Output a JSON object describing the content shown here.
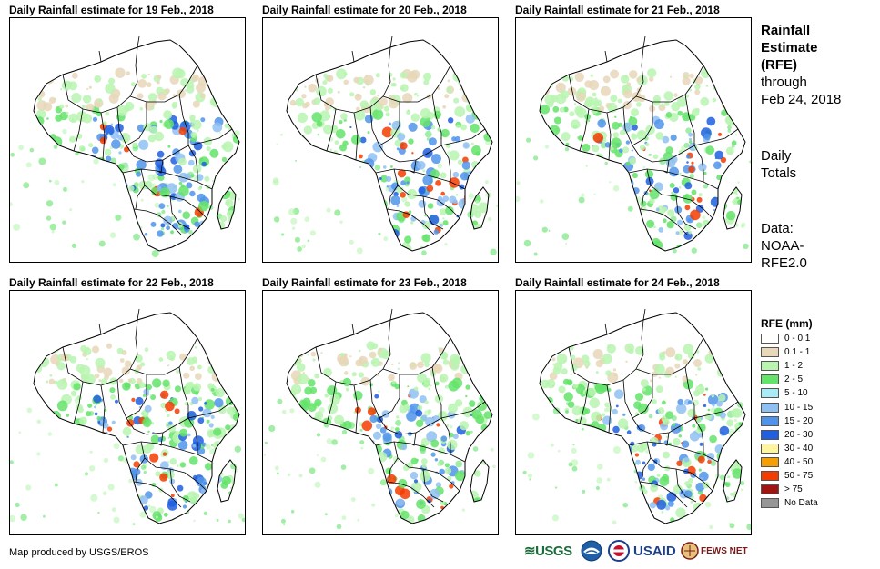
{
  "panels": [
    {
      "title": "Daily Rainfall estimate for 19 Feb., 2018"
    },
    {
      "title": "Daily Rainfall estimate for 20 Feb., 2018"
    },
    {
      "title": "Daily Rainfall estimate for 21 Feb., 2018"
    },
    {
      "title": "Daily Rainfall estimate for 22 Feb., 2018"
    },
    {
      "title": "Daily Rainfall estimate for 23 Feb., 2018"
    },
    {
      "title": "Daily Rainfall estimate for 24 Feb., 2018"
    }
  ],
  "sidebar": {
    "title_line1": "Rainfall",
    "title_line2": "Estimate",
    "title_line3": "(RFE)",
    "through_label": "through",
    "through_date": "Feb 24, 2018",
    "totals_line1": "Daily",
    "totals_line2": "Totals",
    "data_line1": "Data:",
    "data_line2": "NOAA-",
    "data_line3": "RFE2.0"
  },
  "legend": {
    "title": "RFE (mm)",
    "items": [
      {
        "label": "0 - 0.1",
        "color": "#ffffff"
      },
      {
        "label": "0.1 - 1",
        "color": "#e8d7b8"
      },
      {
        "label": "1 - 2",
        "color": "#b9f5b0"
      },
      {
        "label": "2 - 5",
        "color": "#64e36a"
      },
      {
        "label": "5 - 10",
        "color": "#a8ecf5"
      },
      {
        "label": "10 - 15",
        "color": "#8fc0f2"
      },
      {
        "label": "15 - 20",
        "color": "#4f94ea"
      },
      {
        "label": "20 - 30",
        "color": "#1f5fe0"
      },
      {
        "label": "30 - 40",
        "color": "#fff59e"
      },
      {
        "label": "40 - 50",
        "color": "#f5a000"
      },
      {
        "label": "50 - 75",
        "color": "#f53c00"
      },
      {
        "label": "> 75",
        "color": "#a01414"
      },
      {
        "label": "No Data",
        "color": "#969696"
      }
    ]
  },
  "footer": {
    "credit": "Map produced by USGS/EROS",
    "logo_usgs": "≋USGS",
    "logo_usaid": "USAID",
    "logo_fews": "FEWS NET"
  }
}
